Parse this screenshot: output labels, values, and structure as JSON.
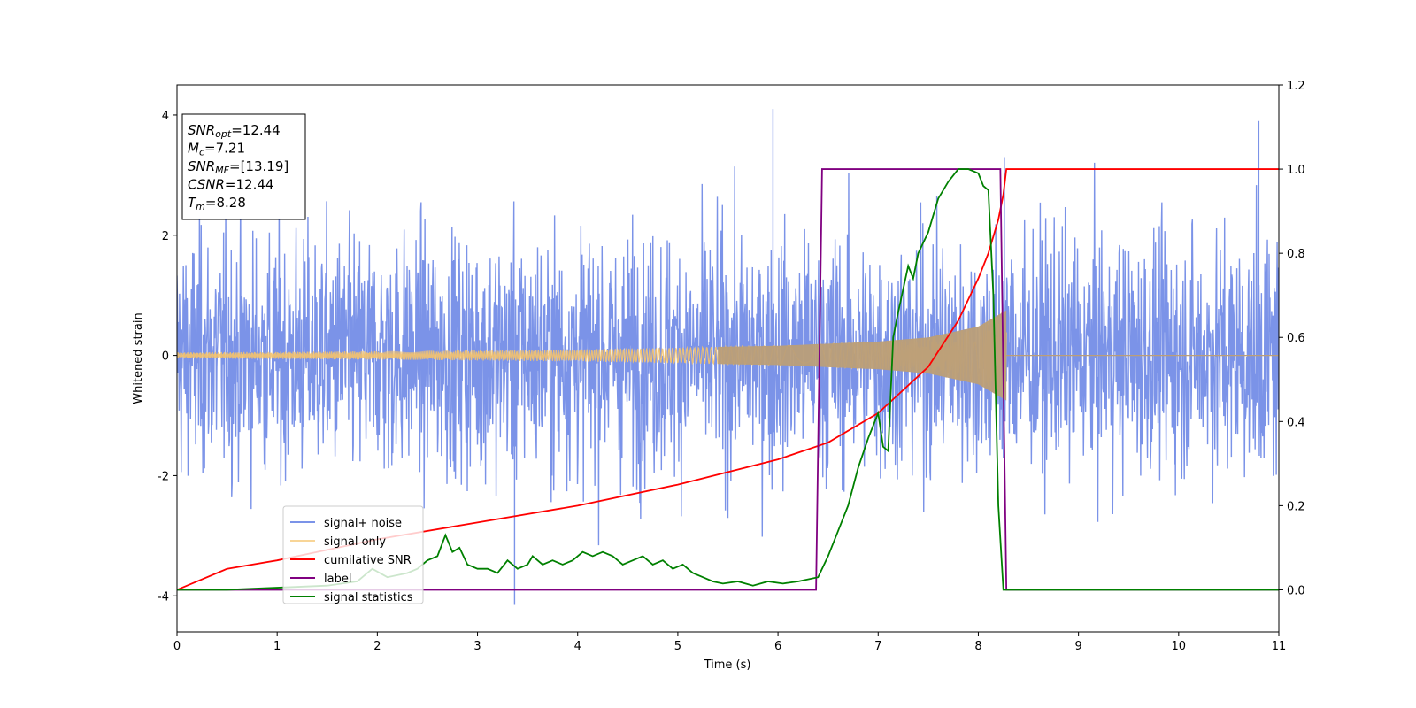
{
  "chart_data": {
    "type": "line",
    "xlabel": "Time (s)",
    "ylabel": "Whitened strain",
    "xlim": [
      0,
      11
    ],
    "ylim": [
      -4.6,
      4.5
    ],
    "y2lim": [
      -0.1,
      1.2
    ],
    "x_ticks": [
      0,
      1,
      2,
      3,
      4,
      5,
      6,
      7,
      8,
      9,
      10,
      11
    ],
    "y_ticks": [
      -4,
      -2,
      0,
      2,
      4
    ],
    "y2_ticks": [
      "0.0",
      "0.2",
      "0.4",
      "0.6",
      "0.8",
      "1.0",
      "1.2"
    ],
    "legend_position": "lower-left",
    "annotation_position": "upper-left",
    "annotation": [
      {
        "base": "SNR",
        "sub": "opt",
        "value": "=12.44"
      },
      {
        "base": "M",
        "sub": "c",
        "value": "=7.21"
      },
      {
        "base": "SNR",
        "sub": "MF",
        "value": "=[13.19]"
      },
      {
        "base": "CSNR",
        "sub": "",
        "value": "=12.44"
      },
      {
        "base": "T",
        "sub": "m",
        "value": "=8.28"
      }
    ],
    "colors": {
      "signal_noise": "#7b93e8",
      "signal_only": "#f5c36b",
      "signal_overlap": "#bb9e78",
      "cumulative_snr": "#ff0000",
      "label": "#800080",
      "signal_statistics": "#008000"
    },
    "series": [
      {
        "name": "signal+ noise",
        "axis": "left",
        "description_x": [
          0,
          11
        ],
        "noise_std": 1.0,
        "peak_positive": 4.1,
        "peak_negative": -4.15
      },
      {
        "name": "signal only",
        "axis": "left",
        "x_range": [
          0,
          8.28
        ],
        "envelope_x": [
          0,
          2,
          4,
          6,
          7,
          7.5,
          8.0,
          8.28
        ],
        "envelope_y": [
          0.05,
          0.07,
          0.1,
          0.16,
          0.23,
          0.3,
          0.48,
          0.75
        ]
      },
      {
        "name": "cumilative SNR",
        "axis": "right",
        "x": [
          0,
          0.5,
          1,
          2,
          3,
          4,
          5,
          6,
          6.5,
          7,
          7.5,
          7.8,
          8.0,
          8.1,
          8.2,
          8.25,
          8.28,
          11
        ],
        "y": [
          0.0,
          0.05,
          0.07,
          0.12,
          0.16,
          0.2,
          0.25,
          0.31,
          0.35,
          0.42,
          0.53,
          0.64,
          0.74,
          0.8,
          0.88,
          0.94,
          1.0,
          1.0
        ]
      },
      {
        "name": "label",
        "axis": "right",
        "x": [
          0,
          6.38,
          6.44,
          8.22,
          8.28,
          11
        ],
        "y": [
          0,
          0,
          1,
          1,
          0,
          0
        ]
      },
      {
        "name": "signal statistics",
        "axis": "right",
        "x": [
          0,
          0.5,
          1,
          1.5,
          1.8,
          1.95,
          2.1,
          2.3,
          2.4,
          2.5,
          2.6,
          2.68,
          2.75,
          2.82,
          2.9,
          3.0,
          3.1,
          3.2,
          3.3,
          3.4,
          3.5,
          3.55,
          3.65,
          3.75,
          3.85,
          3.95,
          4.05,
          4.15,
          4.25,
          4.35,
          4.45,
          4.55,
          4.65,
          4.75,
          4.85,
          4.95,
          5.05,
          5.15,
          5.25,
          5.35,
          5.45,
          5.6,
          5.75,
          5.9,
          6.05,
          6.2,
          6.4,
          6.5,
          6.6,
          6.7,
          6.8,
          6.9,
          7.0,
          7.05,
          7.1,
          7.15,
          7.2,
          7.3,
          7.35,
          7.4,
          7.5,
          7.6,
          7.7,
          7.8,
          7.9,
          8.0,
          8.05,
          8.1,
          8.15,
          8.2,
          8.25,
          8.3,
          11
        ],
        "y": [
          0.0,
          0.0,
          0.005,
          0.01,
          0.02,
          0.05,
          0.03,
          0.04,
          0.05,
          0.07,
          0.08,
          0.13,
          0.09,
          0.1,
          0.06,
          0.05,
          0.05,
          0.04,
          0.07,
          0.05,
          0.06,
          0.08,
          0.06,
          0.07,
          0.06,
          0.07,
          0.09,
          0.08,
          0.09,
          0.08,
          0.06,
          0.07,
          0.08,
          0.06,
          0.07,
          0.05,
          0.06,
          0.04,
          0.03,
          0.02,
          0.015,
          0.02,
          0.01,
          0.02,
          0.015,
          0.02,
          0.03,
          0.08,
          0.14,
          0.2,
          0.29,
          0.36,
          0.42,
          0.34,
          0.33,
          0.6,
          0.66,
          0.77,
          0.74,
          0.8,
          0.85,
          0.93,
          0.97,
          1.0,
          1.0,
          0.99,
          0.96,
          0.95,
          0.7,
          0.2,
          0.0,
          0.0,
          0.0
        ]
      }
    ]
  }
}
